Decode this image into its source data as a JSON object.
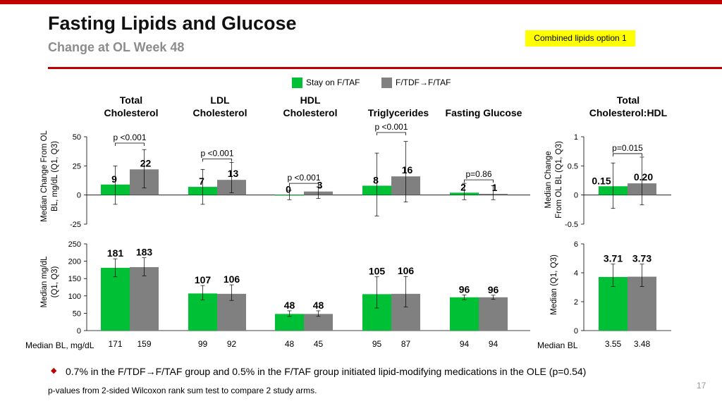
{
  "slide": {
    "title": "Fasting Lipids and Glucose",
    "subtitle": "Change at OL Week 48",
    "tag": "Combined lipids option 1",
    "note": "0.7% in the F/TDF→F/TAF group and 0.5% in the F/TAF group initiated lipid-modifying medications in the OLE (p=0.54)",
    "footnote": "p-values from 2-sided Wilcoxon rank sum test to compare 2 study arms.",
    "page_number": "17"
  },
  "colors": {
    "accent": "#c00000",
    "tag_bg": "#ffff00",
    "stay": "#00c035",
    "switch": "#808080",
    "bullet": "#c00000"
  },
  "legend": [
    {
      "name": "Stay on F/TAF"
    },
    {
      "name": "F/TDF→F/TAF"
    }
  ],
  "column_headers": [
    "Total\nCholesterol",
    "LDL\nCholesterol",
    "HDL\nCholesterol",
    "Triglycerides",
    "Fasting Glucose",
    "Total\nCholesterol:HDL"
  ],
  "axis_labels": {
    "left_top": "Median Change From OL\nBL, mg/dL (Q1, Q3)",
    "left_bottom": "Median mg/dL\n(Q1, Q3)",
    "right_top": "Median Change\nFrom OL BL (Q1, Q3)",
    "right_bottom": "Median (Q1, Q3)"
  },
  "baseline": {
    "left_label": "Median BL, mg/dL",
    "right_label": "Median BL"
  },
  "chart_data": [
    {
      "type": "bar",
      "panel": "change-from-baseline-lipids",
      "ylim": [
        -25,
        50
      ],
      "yticks": [
        "-25",
        "0",
        "25",
        "50"
      ],
      "categories": [
        "Total Cholesterol",
        "LDL Cholesterol",
        "HDL Cholesterol",
        "Triglycerides",
        "Fasting Glucose"
      ],
      "series": [
        {
          "name": "Stay on F/TAF",
          "values": [
            9,
            7,
            0,
            8,
            2
          ],
          "labels": [
            "9",
            "7",
            "0",
            "8",
            "2"
          ],
          "q1": [
            -8,
            -8,
            -4,
            -18,
            -4
          ],
          "q3": [
            25,
            22,
            4,
            36,
            10
          ]
        },
        {
          "name": "F/TDF→F/TAF",
          "values": [
            22,
            13,
            3,
            16,
            1
          ],
          "labels": [
            "22",
            "13",
            "3",
            "16",
            "1"
          ],
          "q1": [
            6,
            2,
            -3,
            -6,
            -4
          ],
          "q3": [
            39,
            28,
            7,
            46,
            8
          ]
        }
      ],
      "pvalues": [
        "p <0.001",
        "p <0.001",
        "p <0.001",
        "p <0.001",
        "p=0.86"
      ]
    },
    {
      "type": "bar",
      "panel": "change-from-baseline-ratio",
      "ylim": [
        -0.5,
        1
      ],
      "yticks": [
        "-0.5",
        "0",
        "0.5",
        "1"
      ],
      "categories": [
        "Total Cholesterol:HDL"
      ],
      "series": [
        {
          "name": "Stay on F/TAF",
          "values": [
            0.15
          ],
          "labels": [
            "0.15"
          ],
          "q1": [
            -0.23
          ],
          "q3": [
            0.55
          ]
        },
        {
          "name": "F/TDF→F/TAF",
          "values": [
            0.2
          ],
          "labels": [
            "0.20"
          ],
          "q1": [
            -0.17
          ],
          "q3": [
            0.65
          ]
        }
      ],
      "pvalues": [
        "p=0.015"
      ]
    },
    {
      "type": "bar",
      "panel": "absolute-values-lipids",
      "ylim": [
        0,
        250
      ],
      "yticks": [
        "0",
        "50",
        "100",
        "150",
        "200",
        "250"
      ],
      "categories": [
        "Total Cholesterol",
        "LDL Cholesterol",
        "HDL Cholesterol",
        "Triglycerides",
        "Fasting Glucose"
      ],
      "series": [
        {
          "name": "Stay on F/TAF",
          "values": [
            181,
            107,
            48,
            105,
            96
          ],
          "labels": [
            "181",
            "107",
            "48",
            "105",
            "96"
          ],
          "q1": [
            155,
            88,
            41,
            65,
            89
          ],
          "q3": [
            207,
            130,
            57,
            155,
            103
          ]
        },
        {
          "name": "F/TDF→F/TAF",
          "values": [
            183,
            106,
            48,
            106,
            96
          ],
          "labels": [
            "183",
            "106",
            "48",
            "106",
            "96"
          ],
          "q1": [
            158,
            87,
            41,
            68,
            90
          ],
          "q3": [
            210,
            132,
            57,
            156,
            102
          ]
        }
      ],
      "baseline_values": [
        [
          "171",
          "159"
        ],
        [
          "99",
          "92"
        ],
        [
          "48",
          "45"
        ],
        [
          "95",
          "87"
        ],
        [
          "94",
          "94"
        ]
      ]
    },
    {
      "type": "bar",
      "panel": "absolute-values-ratio",
      "ylim": [
        0,
        6
      ],
      "yticks": [
        "0",
        "2",
        "4",
        "6"
      ],
      "categories": [
        "Total Cholesterol:HDL"
      ],
      "series": [
        {
          "name": "Stay on F/TAF",
          "values": [
            3.71
          ],
          "labels": [
            "3.71"
          ],
          "q1": [
            3.05
          ],
          "q3": [
            4.6
          ]
        },
        {
          "name": "F/TDF→F/TAF",
          "values": [
            3.73
          ],
          "labels": [
            "3.73"
          ],
          "q1": [
            3.05
          ],
          "q3": [
            4.6
          ]
        }
      ],
      "baseline_values": [
        [
          "3.55",
          "3.48"
        ]
      ]
    }
  ]
}
